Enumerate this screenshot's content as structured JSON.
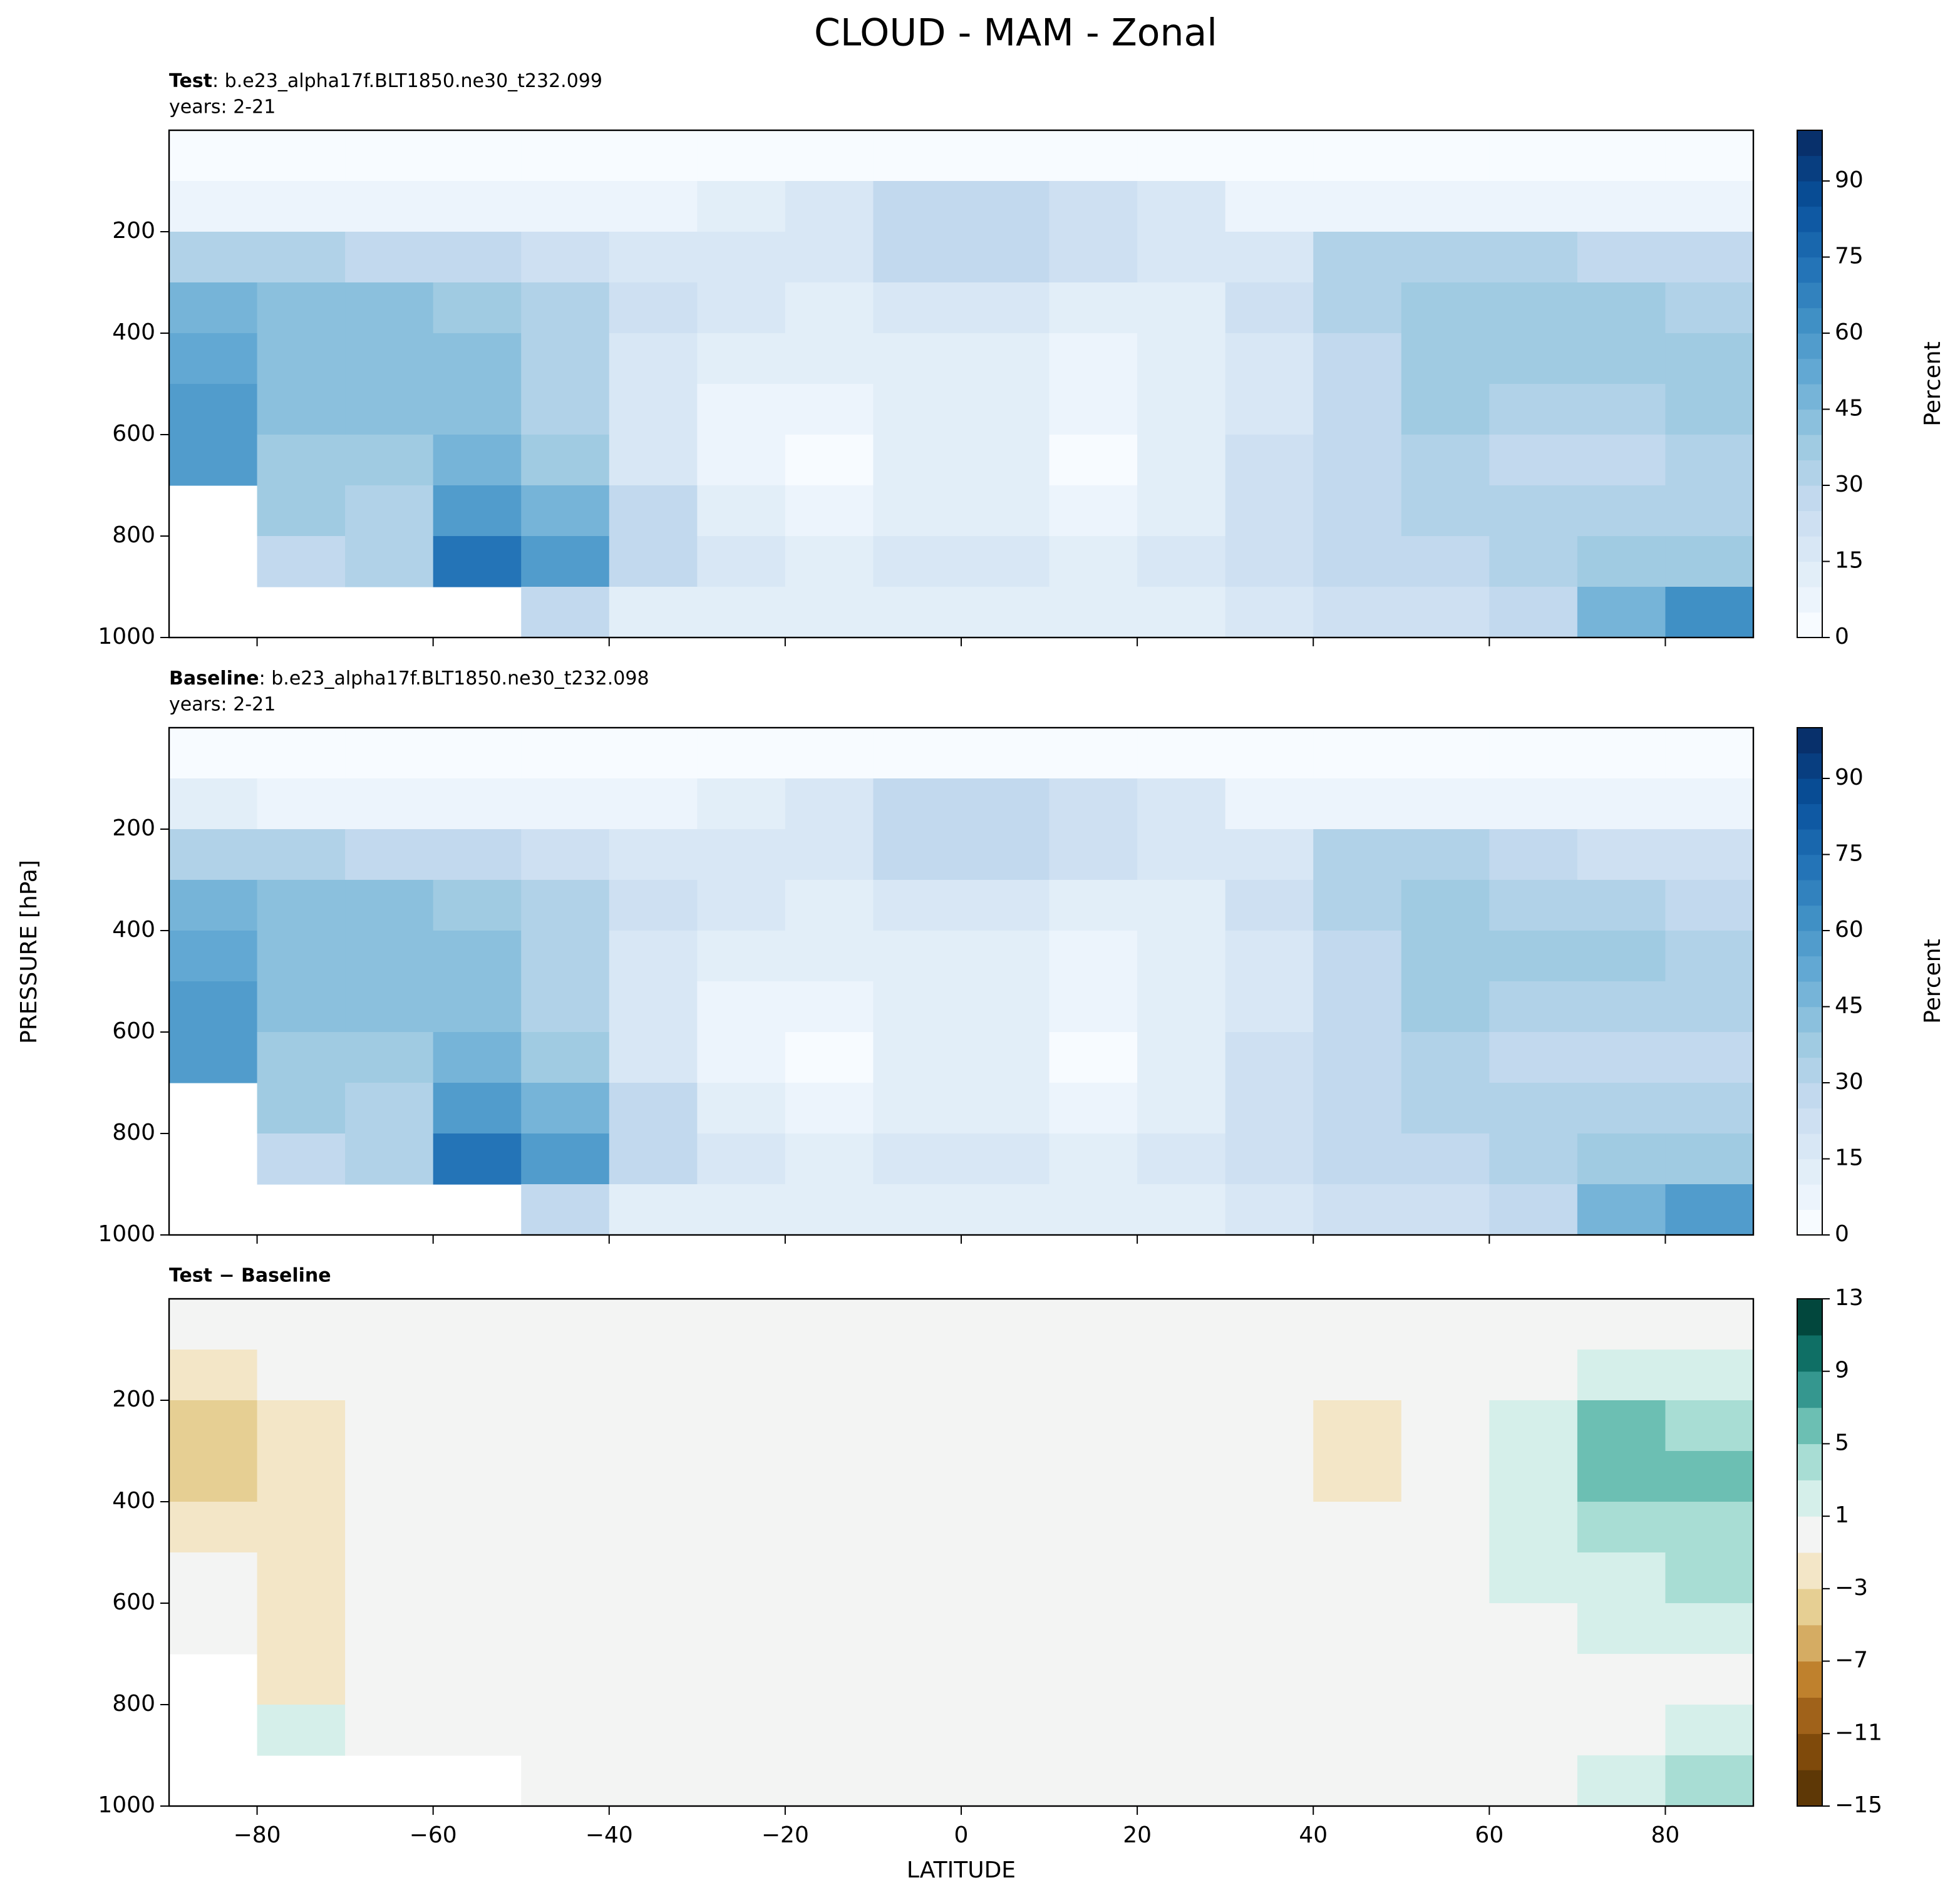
{
  "figure": {
    "title": "CLOUD - MAM - Zonal",
    "xlabel": "LATITUDE",
    "ylabel": "PRESSURE [hPa]"
  },
  "chart_data": [
    {
      "type": "contour",
      "label": "Test",
      "case": ": b.e23_alpha17f.BLT1850.ne30_t232.099",
      "years": "years: 2-21",
      "x": [
        -85,
        -75,
        -65,
        -55,
        -45,
        -35,
        -25,
        -15,
        -5,
        5,
        15,
        25,
        35,
        45,
        55,
        65,
        75,
        85
      ],
      "y": [
        50,
        150,
        250,
        350,
        450,
        550,
        650,
        750,
        850,
        950
      ],
      "z": [
        [
          2,
          2,
          2,
          2,
          2,
          2,
          2,
          2,
          2,
          3,
          3,
          2,
          2,
          2,
          2,
          2,
          2,
          2
        ],
        [
          8,
          8,
          8,
          8,
          8,
          8,
          10,
          18,
          25,
          28,
          22,
          15,
          8,
          8,
          8,
          8,
          8,
          8
        ],
        [
          30,
          30,
          28,
          25,
          22,
          18,
          15,
          18,
          25,
          28,
          20,
          15,
          18,
          30,
          32,
          30,
          28,
          28
        ],
        [
          45,
          40,
          40,
          38,
          30,
          22,
          15,
          12,
          15,
          18,
          12,
          12,
          20,
          30,
          35,
          35,
          35,
          33
        ],
        [
          50,
          42,
          42,
          40,
          32,
          18,
          10,
          10,
          12,
          12,
          8,
          10,
          18,
          28,
          35,
          38,
          38,
          38
        ],
        [
          55,
          40,
          42,
          42,
          30,
          15,
          8,
          6,
          12,
          12,
          6,
          10,
          18,
          25,
          35,
          33,
          32,
          35
        ],
        [
          58,
          38,
          38,
          48,
          38,
          18,
          8,
          4,
          10,
          12,
          4,
          10,
          20,
          25,
          33,
          28,
          28,
          30
        ],
        [
          null,
          35,
          30,
          55,
          45,
          25,
          10,
          8,
          12,
          12,
          8,
          12,
          20,
          25,
          30,
          30,
          32,
          32
        ],
        [
          null,
          28,
          32,
          72,
          55,
          28,
          15,
          12,
          15,
          15,
          12,
          15,
          22,
          25,
          28,
          30,
          35,
          38
        ],
        [
          null,
          null,
          null,
          null,
          25,
          12,
          10,
          10,
          10,
          10,
          10,
          12,
          18,
          20,
          22,
          28,
          48,
          62
        ]
      ],
      "xlim": [
        -90,
        90
      ],
      "ylim": [
        1000,
        0
      ],
      "xticks": [
        {
          "value": -80,
          "label": "−80"
        },
        {
          "value": -60,
          "label": "−60"
        },
        {
          "value": -40,
          "label": "−40"
        },
        {
          "value": -20,
          "label": "−20"
        },
        0,
        20,
        40,
        60,
        80
      ],
      "yticks": [
        200,
        400,
        600,
        800,
        1000
      ],
      "levels": [
        0,
        5,
        10,
        15,
        20,
        25,
        30,
        35,
        40,
        45,
        50,
        55,
        60,
        65,
        70,
        75,
        80,
        85,
        90,
        95,
        100
      ],
      "cmap": [
        "#f7fbff",
        "#deebf7",
        "#c6dbef",
        "#9ecae1",
        "#6baed6",
        "#4292c6",
        "#2171b5",
        "#08519c",
        "#08306b"
      ],
      "cbar_ticks": [
        0,
        15,
        30,
        45,
        60,
        75,
        90
      ],
      "cbar_label": "Percent"
    },
    {
      "type": "contour",
      "label": "Baseline",
      "case": ": b.e23_alpha17f.BLT1850.ne30_t232.098",
      "years": "years: 2-21",
      "x": [
        -85,
        -75,
        -65,
        -55,
        -45,
        -35,
        -25,
        -15,
        -5,
        5,
        15,
        25,
        35,
        45,
        55,
        65,
        75,
        85
      ],
      "y": [
        50,
        150,
        250,
        350,
        450,
        550,
        650,
        750,
        850,
        950
      ],
      "z": [
        [
          2,
          2,
          2,
          2,
          2,
          2,
          2,
          2,
          2,
          3,
          3,
          2,
          2,
          2,
          2,
          2,
          2,
          2
        ],
        [
          10,
          9,
          8,
          8,
          8,
          8,
          10,
          18,
          25,
          28,
          22,
          15,
          8,
          8,
          8,
          8,
          7,
          7
        ],
        [
          34,
          32,
          28,
          25,
          22,
          18,
          15,
          18,
          25,
          28,
          20,
          15,
          18,
          32,
          32,
          28,
          23,
          24
        ],
        [
          49,
          42,
          40,
          38,
          30,
          22,
          15,
          12,
          15,
          18,
          12,
          12,
          20,
          32,
          35,
          33,
          30,
          27
        ],
        [
          52,
          43,
          42,
          40,
          32,
          18,
          10,
          10,
          12,
          12,
          8,
          10,
          18,
          28,
          35,
          36,
          35,
          34
        ],
        [
          56,
          41,
          42,
          42,
          30,
          15,
          8,
          6,
          12,
          12,
          6,
          10,
          18,
          25,
          35,
          31,
          30,
          32
        ],
        [
          58,
          39,
          38,
          48,
          38,
          18,
          8,
          4,
          10,
          12,
          4,
          10,
          20,
          25,
          33,
          28,
          26,
          28
        ],
        [
          null,
          36,
          30,
          55,
          45,
          25,
          10,
          8,
          12,
          12,
          8,
          12,
          20,
          25,
          30,
          30,
          32,
          32
        ],
        [
          null,
          27,
          32,
          72,
          55,
          28,
          15,
          12,
          15,
          15,
          12,
          15,
          22,
          25,
          28,
          30,
          35,
          36
        ],
        [
          null,
          null,
          null,
          null,
          25,
          12,
          10,
          10,
          10,
          10,
          10,
          12,
          18,
          20,
          22,
          28,
          46,
          59
        ]
      ],
      "xlim": [
        -90,
        90
      ],
      "ylim": [
        1000,
        0
      ],
      "xticks": [
        {
          "value": -80,
          "label": "−80"
        },
        {
          "value": -60,
          "label": "−60"
        },
        {
          "value": -40,
          "label": "−40"
        },
        {
          "value": -20,
          "label": "−20"
        },
        0,
        20,
        40,
        60,
        80
      ],
      "yticks": [
        200,
        400,
        600,
        800,
        1000
      ],
      "levels": [
        0,
        5,
        10,
        15,
        20,
        25,
        30,
        35,
        40,
        45,
        50,
        55,
        60,
        65,
        70,
        75,
        80,
        85,
        90,
        95,
        100
      ],
      "cmap": [
        "#f7fbff",
        "#deebf7",
        "#c6dbef",
        "#9ecae1",
        "#6baed6",
        "#4292c6",
        "#2171b5",
        "#08519c",
        "#08306b"
      ],
      "cbar_ticks": [
        0,
        15,
        30,
        45,
        60,
        75,
        90
      ],
      "cbar_label": "Percent"
    },
    {
      "type": "contour",
      "label": "Test − Baseline",
      "x": [
        -85,
        -75,
        -65,
        -55,
        -45,
        -35,
        -25,
        -15,
        -5,
        5,
        15,
        25,
        35,
        45,
        55,
        65,
        75,
        85
      ],
      "y": [
        50,
        150,
        250,
        350,
        450,
        550,
        650,
        750,
        850,
        950
      ],
      "z": [
        [
          0,
          0,
          0,
          0,
          0,
          0,
          0,
          0,
          0,
          0,
          0,
          0,
          0,
          0,
          0,
          0,
          0,
          0
        ],
        [
          -2,
          -1,
          0,
          0,
          0,
          0,
          0,
          0,
          0,
          0,
          0,
          0,
          0,
          0,
          0,
          0,
          1,
          1
        ],
        [
          -4,
          -2,
          0,
          0,
          0,
          0,
          0,
          0,
          0,
          0,
          0,
          0,
          0,
          -2,
          0,
          2,
          5,
          4
        ],
        [
          -4,
          -2,
          0,
          0,
          0,
          0,
          0,
          0,
          0,
          0,
          0,
          0,
          0,
          -2,
          0,
          2,
          5,
          6
        ],
        [
          -2,
          -1.5,
          0,
          0,
          0,
          0,
          0,
          0,
          0,
          0,
          0,
          0,
          0,
          0,
          0,
          2,
          3,
          4
        ],
        [
          -1,
          -1.5,
          0,
          0,
          0,
          0,
          0,
          0,
          0,
          0,
          0,
          0,
          0,
          0,
          0,
          2,
          2,
          3
        ],
        [
          0,
          -1.5,
          0,
          0,
          0,
          0,
          0,
          0,
          0,
          0,
          0,
          0,
          0,
          0,
          0,
          0,
          1.5,
          2
        ],
        [
          null,
          -1.5,
          0,
          0,
          0,
          0,
          0,
          0,
          0,
          0,
          0,
          0,
          0,
          0,
          0,
          0,
          0,
          0
        ],
        [
          null,
          1.5,
          0,
          0,
          0,
          0,
          0,
          0,
          0,
          0,
          0,
          0,
          0,
          0,
          0,
          0,
          0,
          1.5
        ],
        [
          null,
          null,
          null,
          null,
          0,
          0,
          0,
          0,
          0,
          0,
          0,
          0,
          0,
          0,
          0,
          0,
          1.5,
          3
        ]
      ],
      "xlim": [
        -90,
        90
      ],
      "ylim": [
        1000,
        0
      ],
      "xticks": [
        {
          "value": -80,
          "label": "−80"
        },
        {
          "value": -60,
          "label": "−60"
        },
        {
          "value": -40,
          "label": "−40"
        },
        {
          "value": -20,
          "label": "−20"
        },
        0,
        20,
        40,
        60,
        80
      ],
      "yticks": [
        200,
        400,
        600,
        800,
        1000
      ],
      "levels": [
        -15,
        -13,
        -11,
        -9,
        -7,
        -5,
        -3,
        -1,
        1,
        3,
        5,
        7,
        9,
        11,
        13
      ],
      "colors": [
        "#5e3806",
        "#7f4a0b",
        "#a0621a",
        "#bf812d",
        "#d5ac63",
        "#e6cf93",
        "#f3e6c7",
        "#f3f4f3",
        "#d5efea",
        "#a8ddd4",
        "#6cbfb3",
        "#35978f",
        "#0f6f65",
        "#02473d"
      ],
      "cbar_ticks": [
        {
          "value": -15,
          "label": "−15"
        },
        {
          "value": -11,
          "label": "−11"
        },
        {
          "value": -7,
          "label": "−7"
        },
        {
          "value": -3,
          "label": "−3"
        },
        1,
        5,
        9,
        13
      ]
    }
  ]
}
